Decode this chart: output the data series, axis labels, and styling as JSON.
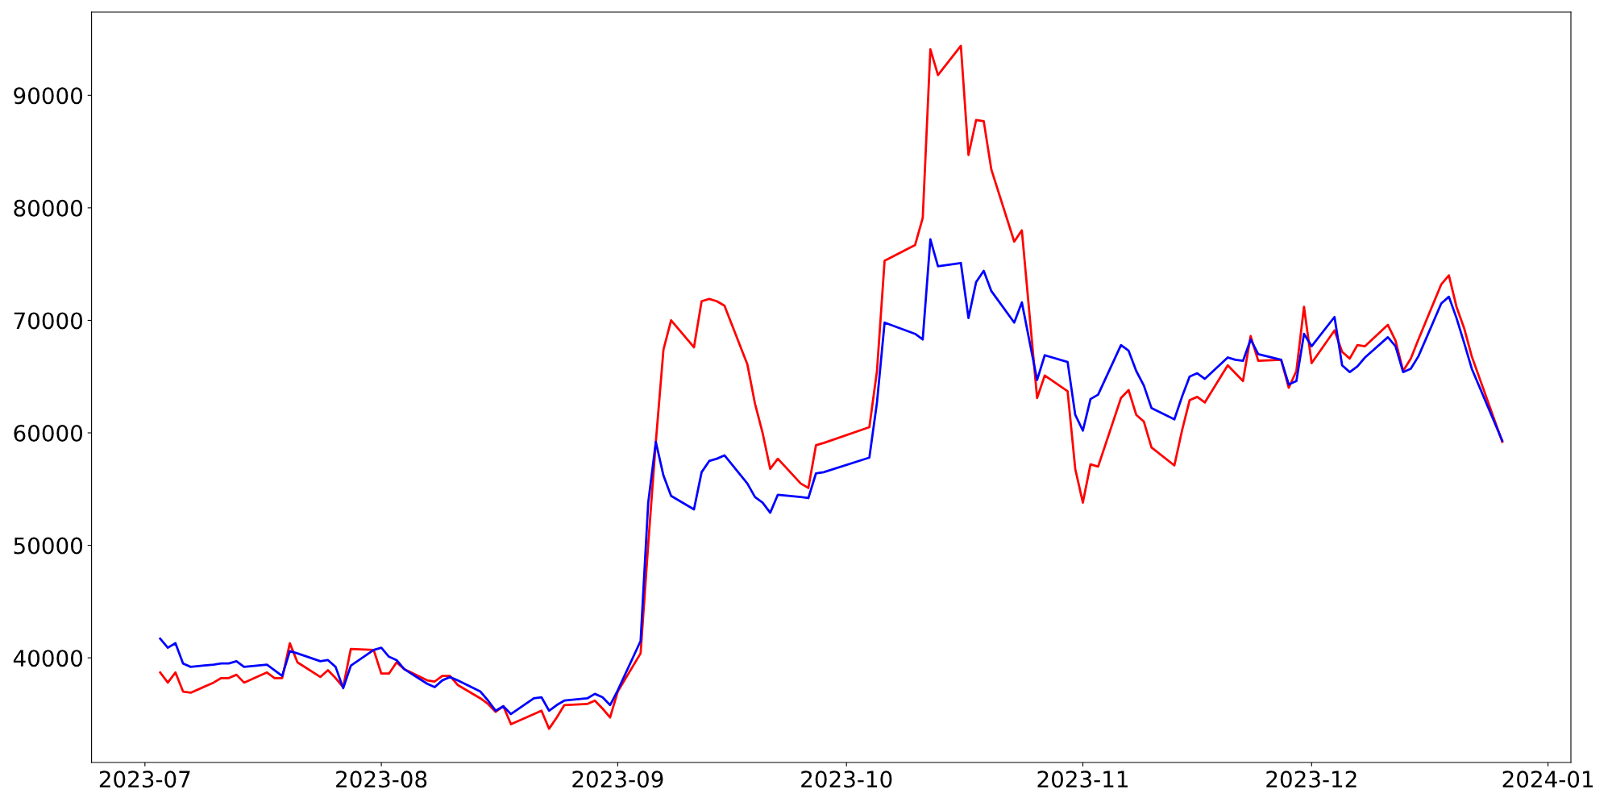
{
  "chart_data": {
    "type": "line",
    "x": [
      "2023-07-03",
      "2023-07-04",
      "2023-07-05",
      "2023-07-06",
      "2023-07-07",
      "2023-07-10",
      "2023-07-11",
      "2023-07-12",
      "2023-07-13",
      "2023-07-14",
      "2023-07-17",
      "2023-07-18",
      "2023-07-19",
      "2023-07-20",
      "2023-07-21",
      "2023-07-24",
      "2023-07-25",
      "2023-07-26",
      "2023-07-27",
      "2023-07-28",
      "2023-07-31",
      "2023-08-01",
      "2023-08-02",
      "2023-08-03",
      "2023-08-04",
      "2023-08-07",
      "2023-08-08",
      "2023-08-09",
      "2023-08-10",
      "2023-08-11",
      "2023-08-14",
      "2023-08-15",
      "2023-08-16",
      "2023-08-17",
      "2023-08-18",
      "2023-08-21",
      "2023-08-22",
      "2023-08-23",
      "2023-08-24",
      "2023-08-25",
      "2023-08-28",
      "2023-08-29",
      "2023-08-30",
      "2023-08-31",
      "2023-09-01",
      "2023-09-04",
      "2023-09-05",
      "2023-09-06",
      "2023-09-07",
      "2023-09-08",
      "2023-09-11",
      "2023-09-12",
      "2023-09-13",
      "2023-09-14",
      "2023-09-15",
      "2023-09-18",
      "2023-09-19",
      "2023-09-20",
      "2023-09-21",
      "2023-09-22",
      "2023-09-25",
      "2023-09-26",
      "2023-09-27",
      "2023-09-28",
      "2023-10-04",
      "2023-10-05",
      "2023-10-06",
      "2023-10-10",
      "2023-10-11",
      "2023-10-12",
      "2023-10-13",
      "2023-10-16",
      "2023-10-17",
      "2023-10-18",
      "2023-10-19",
      "2023-10-20",
      "2023-10-23",
      "2023-10-24",
      "2023-10-26",
      "2023-10-27",
      "2023-10-30",
      "2023-10-31",
      "2023-11-01",
      "2023-11-02",
      "2023-11-03",
      "2023-11-06",
      "2023-11-07",
      "2023-11-08",
      "2023-11-09",
      "2023-11-10",
      "2023-11-13",
      "2023-11-14",
      "2023-11-15",
      "2023-11-16",
      "2023-11-17",
      "2023-11-20",
      "2023-11-21",
      "2023-11-22",
      "2023-11-23",
      "2023-11-24",
      "2023-11-27",
      "2023-11-28",
      "2023-11-29",
      "2023-11-30",
      "2023-12-01",
      "2023-12-04",
      "2023-12-05",
      "2023-12-06",
      "2023-12-07",
      "2023-12-08",
      "2023-12-11",
      "2023-12-12",
      "2023-12-13",
      "2023-12-14",
      "2023-12-15",
      "2023-12-18",
      "2023-12-19",
      "2023-12-20",
      "2023-12-21",
      "2023-12-22",
      "2023-12-26"
    ],
    "series": [
      {
        "color": "#ff0000",
        "values": [
          38700,
          37800,
          38700,
          37000,
          36900,
          37800,
          38200,
          38200,
          38500,
          37800,
          38700,
          38200,
          38200,
          41300,
          39600,
          38300,
          38900,
          38200,
          37400,
          40800,
          40700,
          38600,
          38600,
          39600,
          39000,
          38000,
          37900,
          38400,
          38400,
          37600,
          36400,
          35900,
          35200,
          35700,
          34100,
          35000,
          35300,
          33700,
          34700,
          35800,
          35900,
          36200,
          35500,
          34700,
          37000,
          40400,
          50100,
          59200,
          67400,
          70000,
          67600,
          71700,
          71900,
          71700,
          71300,
          66100,
          62600,
          60000,
          56800,
          57700,
          55500,
          55100,
          58900,
          59100,
          60500,
          65500,
          75300,
          76700,
          79100,
          94100,
          91800,
          94400,
          84700,
          87800,
          87700,
          83400,
          77000,
          78000,
          63100,
          65100,
          63700,
          56800,
          53800,
          57200,
          57000,
          63100,
          63800,
          61600,
          61000,
          58700,
          57100,
          60200,
          62900,
          63200,
          62700,
          66000,
          65300,
          64600,
          68600,
          66400,
          66500,
          64000,
          65500,
          71200,
          66200,
          69100,
          67200,
          66600,
          67800,
          67700,
          69600,
          68200,
          65500,
          66600,
          68300,
          73200,
          74000,
          71200,
          69300,
          66800,
          59200
        ]
      },
      {
        "color": "#0000ff",
        "values": [
          41700,
          40900,
          41300,
          39500,
          39200,
          39400,
          39500,
          39500,
          39700,
          39200,
          39400,
          38900,
          38400,
          40600,
          40400,
          39700,
          39800,
          39200,
          37300,
          39300,
          40700,
          40900,
          40100,
          39800,
          39000,
          37700,
          37400,
          38000,
          38300,
          38000,
          37000,
          36200,
          35300,
          35700,
          35000,
          36400,
          36500,
          35300,
          35800,
          36200,
          36400,
          36800,
          36500,
          35800,
          37100,
          41500,
          53800,
          59200,
          56200,
          54400,
          53200,
          56500,
          57500,
          57700,
          58000,
          55500,
          54300,
          53800,
          52900,
          54500,
          54300,
          54200,
          56400,
          56500,
          57800,
          62700,
          69800,
          68800,
          68300,
          77200,
          74800,
          75100,
          70200,
          73400,
          74400,
          72600,
          69800,
          71600,
          64700,
          66900,
          66300,
          61600,
          60200,
          63000,
          63400,
          67800,
          67300,
          65500,
          64200,
          62200,
          61200,
          63200,
          65000,
          65300,
          64800,
          66700,
          66500,
          66400,
          68300,
          67000,
          66500,
          64300,
          64600,
          68800,
          67700,
          70300,
          66000,
          65400,
          65900,
          66700,
          68500,
          67700,
          65400,
          65700,
          66800,
          71500,
          72100,
          70200,
          68000,
          65700,
          59300
        ]
      }
    ],
    "xlim": [
      "2023-06-24",
      "2024-01-04"
    ],
    "xticks": [
      {
        "value": "2023-07",
        "label": "2023-07"
      },
      {
        "value": "2023-08",
        "label": "2023-08"
      },
      {
        "value": "2023-09",
        "label": "2023-09"
      },
      {
        "value": "2023-10",
        "label": "2023-10"
      },
      {
        "value": "2023-11",
        "label": "2023-11"
      },
      {
        "value": "2023-12",
        "label": "2023-12"
      },
      {
        "value": "2024-01",
        "label": "2024-01"
      }
    ],
    "ylim": [
      30700,
      97400
    ],
    "yticks": [
      40000,
      50000,
      60000,
      70000,
      80000,
      90000
    ],
    "grid": false,
    "marker": "none",
    "line_style": "solid"
  }
}
